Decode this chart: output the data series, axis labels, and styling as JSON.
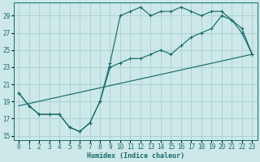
{
  "xlabel": "Humidex (Indice chaleur)",
  "xlim": [
    -0.5,
    23.5
  ],
  "ylim": [
    14.5,
    30.5
  ],
  "yticks": [
    15,
    17,
    19,
    21,
    23,
    25,
    27,
    29
  ],
  "xticks": [
    0,
    1,
    2,
    3,
    4,
    5,
    6,
    7,
    8,
    9,
    10,
    11,
    12,
    13,
    14,
    15,
    16,
    17,
    18,
    19,
    20,
    21,
    22,
    23
  ],
  "bg_color": "#cce8e8",
  "grid_color": "#aacece",
  "line_color": "#1a6b6b",
  "curve1_x": [
    0,
    1,
    2,
    3,
    4,
    5,
    6,
    7,
    8,
    9,
    10,
    11,
    12,
    13,
    14,
    15,
    16,
    17,
    18,
    19,
    20,
    21,
    22,
    23
  ],
  "curve1_y": [
    20.0,
    18.5,
    17.5,
    17.5,
    17.5,
    16.0,
    15.5,
    16.5,
    19.0,
    23.5,
    29.0,
    29.5,
    30.0,
    29.0,
    29.5,
    29.5,
    30.0,
    29.5,
    29.0,
    29.5,
    29.5,
    28.5,
    27.0,
    24.5
  ],
  "curve2_x": [
    0,
    1,
    2,
    3,
    4,
    5,
    6,
    7,
    8,
    9,
    10,
    11,
    12,
    13,
    14,
    15,
    16,
    17,
    18,
    19,
    20,
    21,
    22,
    23
  ],
  "curve2_y": [
    20.0,
    18.5,
    17.5,
    17.5,
    17.5,
    16.0,
    15.5,
    16.5,
    19.0,
    23.0,
    23.5,
    24.0,
    24.0,
    24.5,
    25.0,
    24.5,
    25.5,
    26.5,
    27.0,
    27.5,
    29.0,
    28.5,
    27.5,
    24.5
  ],
  "line3_x": [
    0,
    23
  ],
  "line3_y": [
    18.5,
    24.5
  ]
}
